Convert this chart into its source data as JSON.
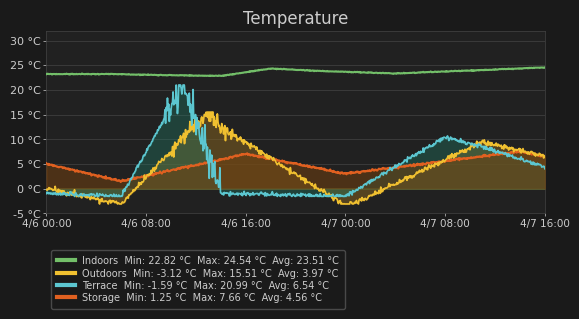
{
  "title": "Temperature",
  "bg_color": "#1a1a1a",
  "plot_bg_color": "#212121",
  "grid_color": "#444444",
  "text_color": "#cccccc",
  "ylim": [
    -5,
    32
  ],
  "yticks": [
    -5,
    0,
    5,
    10,
    15,
    20,
    25,
    30
  ],
  "ytick_labels": [
    "-5 °C",
    "0 °C",
    "5 °C",
    "10 °C",
    "15 °C",
    "20 °C",
    "25 °C",
    "30 °C"
  ],
  "xtick_labels": [
    "4/6 00:00",
    "4/6 08:00",
    "4/6 16:00",
    "4/7 00:00",
    "4/7 08:00",
    "4/7 16:00"
  ],
  "series": {
    "Indoors": {
      "color": "#73bf69",
      "min": 22.82,
      "max": 24.54,
      "avg": 23.51,
      "lw": 1.5
    },
    "Outdoors": {
      "color": "#f0c030",
      "min": -3.12,
      "max": 15.51,
      "avg": 3.97,
      "lw": 1.2
    },
    "Terrace": {
      "color": "#5cc6d0",
      "min": -1.59,
      "max": 20.99,
      "avg": 6.54,
      "lw": 1.2
    },
    "Storage": {
      "color": "#e06020",
      "min": 1.25,
      "max": 7.66,
      "avg": 4.56,
      "lw": 1.5
    }
  },
  "title_fontsize": 12
}
